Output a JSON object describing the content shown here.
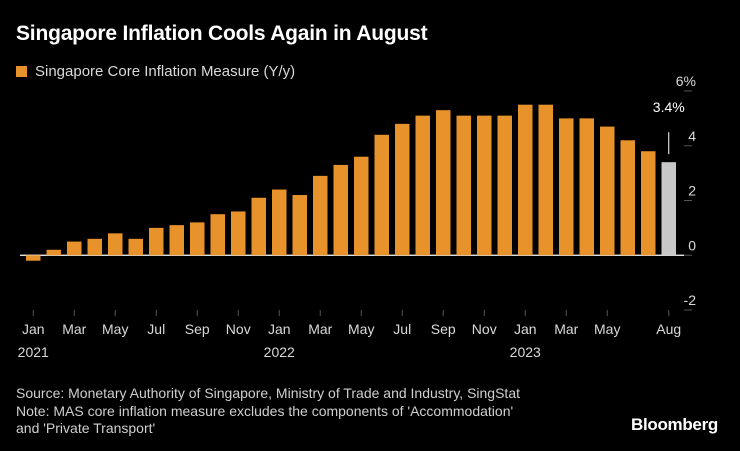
{
  "header": {
    "title": "Singapore Inflation Cools Again in August",
    "legend_label": "Singapore Core Inflation Measure (Y/y)"
  },
  "footer": {
    "source": "Source: Monetary Authority of Singapore, Ministry of Trade and Industry, SingStat",
    "note_line1": "Note: MAS core inflation measure excludes the components of 'Accommodation'",
    "note_line2": "and 'Private Transport'",
    "brand": "Bloomberg"
  },
  "colors": {
    "background": "#000000",
    "bar": "#e8922b",
    "latest_bar": "#c8c8c8",
    "axis_text": "#d9d9d9",
    "gridline": "#555555"
  },
  "chart_data": {
    "type": "bar",
    "title": "Singapore Inflation Cools Again in August",
    "series": [
      {
        "name": "Singapore Core Inflation Measure (Y/y)",
        "categories": [
          "Jan 2021",
          "Feb 2021",
          "Mar 2021",
          "Apr 2021",
          "May 2021",
          "Jun 2021",
          "Jul 2021",
          "Aug 2021",
          "Sep 2021",
          "Oct 2021",
          "Nov 2021",
          "Dec 2021",
          "Jan 2022",
          "Feb 2022",
          "Mar 2022",
          "Apr 2022",
          "May 2022",
          "Jun 2022",
          "Jul 2022",
          "Aug 2022",
          "Sep 2022",
          "Oct 2022",
          "Nov 2022",
          "Dec 2022",
          "Jan 2023",
          "Feb 2023",
          "Mar 2023",
          "Apr 2023",
          "May 2023",
          "Jun 2023",
          "Jul 2023",
          "Aug 2023"
        ],
        "values": [
          -0.2,
          0.2,
          0.5,
          0.6,
          0.8,
          0.6,
          1.0,
          1.1,
          1.2,
          1.5,
          1.6,
          2.1,
          2.4,
          2.2,
          2.9,
          3.3,
          3.6,
          4.4,
          4.8,
          5.1,
          5.3,
          5.1,
          5.1,
          5.1,
          5.5,
          5.5,
          5.0,
          5.0,
          4.7,
          4.2,
          3.8,
          3.4
        ]
      }
    ],
    "highlight_last": true,
    "annotation": {
      "index": 31,
      "text": "3.4%"
    },
    "x_tick_labels": [
      {
        "index": 0,
        "month": "Jan",
        "year": "2021"
      },
      {
        "index": 2,
        "month": "Mar",
        "year": ""
      },
      {
        "index": 4,
        "month": "May",
        "year": ""
      },
      {
        "index": 6,
        "month": "Jul",
        "year": ""
      },
      {
        "index": 8,
        "month": "Sep",
        "year": ""
      },
      {
        "index": 10,
        "month": "Nov",
        "year": ""
      },
      {
        "index": 12,
        "month": "Jan",
        "year": "2022"
      },
      {
        "index": 14,
        "month": "Mar",
        "year": ""
      },
      {
        "index": 16,
        "month": "May",
        "year": ""
      },
      {
        "index": 18,
        "month": "Jul",
        "year": ""
      },
      {
        "index": 20,
        "month": "Sep",
        "year": ""
      },
      {
        "index": 22,
        "month": "Nov",
        "year": ""
      },
      {
        "index": 24,
        "month": "Jan",
        "year": "2023"
      },
      {
        "index": 26,
        "month": "Mar",
        "year": ""
      },
      {
        "index": 28,
        "month": "May",
        "year": ""
      },
      {
        "index": 31,
        "month": "Aug",
        "year": ""
      }
    ],
    "y_ticks": [
      {
        "value": 6,
        "label": "6%"
      },
      {
        "value": 4,
        "label": "4"
      },
      {
        "value": 2,
        "label": "2"
      },
      {
        "value": 0,
        "label": "0"
      },
      {
        "value": -2,
        "label": "-2"
      }
    ],
    "ylim": [
      -2,
      6
    ],
    "y_axis_position": "right",
    "grid": false
  }
}
